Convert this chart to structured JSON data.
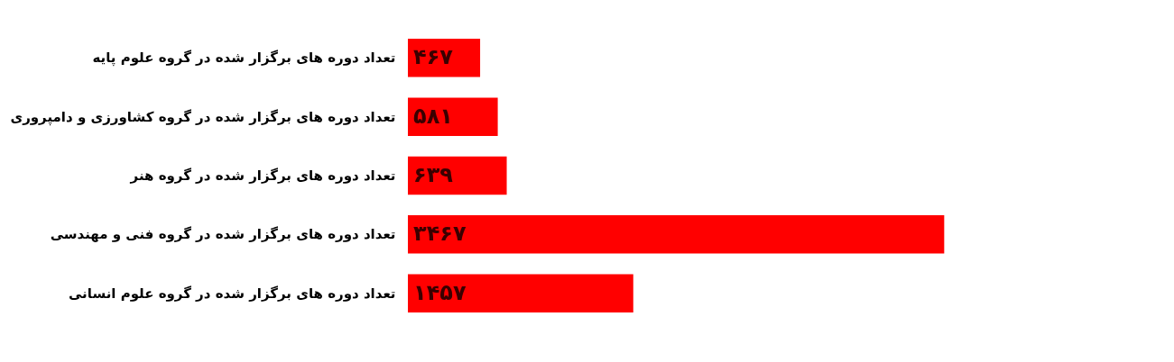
{
  "chart_data": {
    "type": "bar",
    "orientation": "horizontal",
    "categories": [
      "تعداد دوره های برگزار شده در گروه علوم پایه",
      "تعداد دوره های برگزار شده در گروه کشاورزی و دامپروری",
      "تعداد دوره های برگزار شده در گروه هنر",
      "تعداد دوره های برگزار شده در گروه فنی و مهندسی",
      "تعداد دوره های برگزار شده در گروه علوم انسانی"
    ],
    "values": [
      467,
      581,
      639,
      3467,
      1457
    ],
    "value_labels": [
      "۴۶۷",
      "۵۸۱",
      "۶۳۹",
      "۳۴۶۷",
      "۱۴۵۷"
    ],
    "color": "#ff0000"
  }
}
